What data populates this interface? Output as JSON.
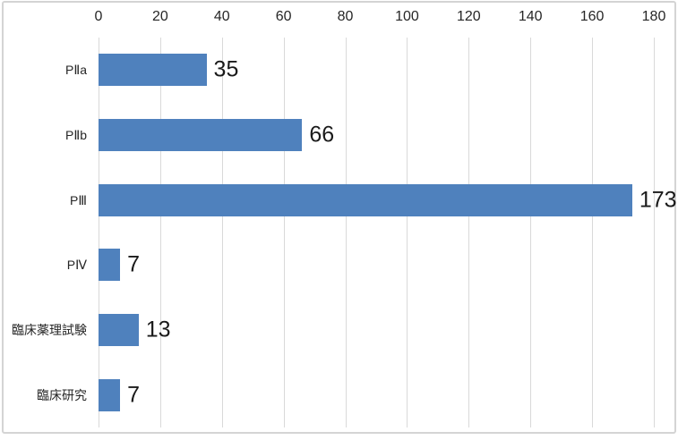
{
  "chart_data": {
    "type": "bar",
    "orientation": "horizontal",
    "categories": [
      "PⅡa",
      "PⅡb",
      "PⅢ",
      "PⅣ",
      "臨床薬理試験",
      "臨床研究"
    ],
    "values": [
      35,
      66,
      173,
      7,
      13,
      7
    ],
    "x_ticks": [
      0,
      20,
      40,
      60,
      80,
      100,
      120,
      140,
      160,
      180
    ],
    "xlim": [
      0,
      180
    ],
    "xlabel": "",
    "ylabel": "",
    "title": "",
    "grid": true,
    "axis_position": "top",
    "legend": "none",
    "bar_color": "#4F81BD",
    "gridline_color": "#D9D9D9",
    "border_color": "#D4D4D4",
    "tick_label_color": "#262626",
    "category_label_color": "#262626",
    "value_label_color": "#1A1A1A"
  }
}
